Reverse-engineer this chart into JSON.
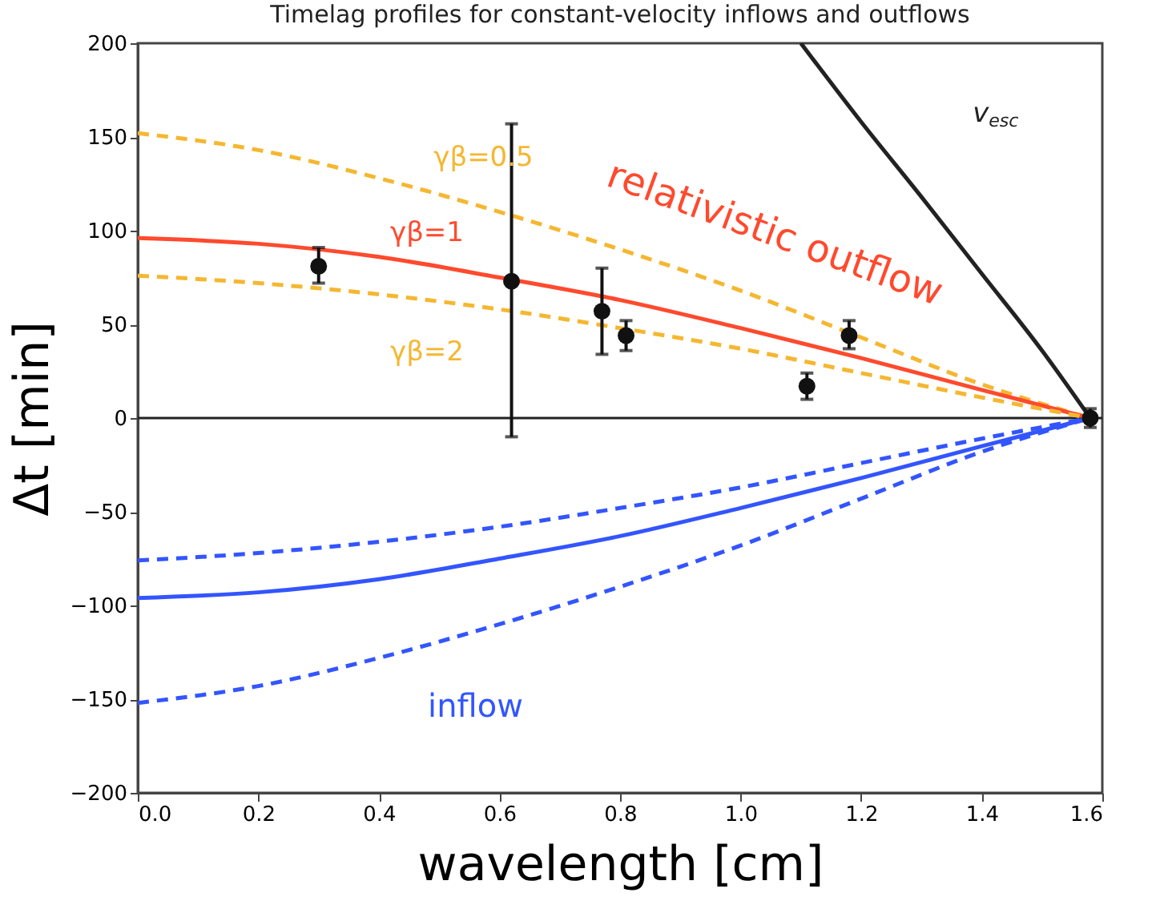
{
  "chart_data": {
    "type": "line",
    "title": "Timelag profiles for constant-velocity inflows and outflows",
    "xlabel": "wavelength [cm]",
    "ylabel": "Δt [min]",
    "xlim": [
      0,
      1.6
    ],
    "ylim": [
      -200,
      200
    ],
    "xticks": [
      {
        "value": 0,
        "label": "0.0"
      },
      0.2,
      0.4,
      0.6,
      0.8,
      {
        "value": 1.0,
        "label": "1.0"
      },
      1.2,
      1.4,
      1.6
    ],
    "yticks": [
      -200,
      -150,
      -100,
      -50,
      0,
      50,
      100,
      150,
      200
    ],
    "grid": false,
    "legend": false,
    "ref_lines": [
      {
        "axis": "y",
        "value": 0,
        "color": "#222222",
        "line_style": "solid"
      }
    ],
    "series": [
      {
        "name": "γβ=0.5",
        "color": "#f5b731",
        "line_style": "dashed",
        "x": [
          0,
          0.2,
          0.4,
          0.6,
          0.8,
          1.0,
          1.2,
          1.4,
          1.58
        ],
        "values": [
          152,
          143,
          128,
          110,
          90,
          68,
          43,
          18,
          0
        ]
      },
      {
        "name": "γβ=1",
        "color": "#ff4a2e",
        "line_style": "solid",
        "x": [
          0,
          0.2,
          0.4,
          0.6,
          0.8,
          1.0,
          1.2,
          1.4,
          1.58
        ],
        "values": [
          96,
          93,
          86,
          75,
          63,
          48,
          32,
          15,
          0
        ]
      },
      {
        "name": "γβ=2",
        "color": "#f5b731",
        "line_style": "dashed",
        "x": [
          0,
          0.2,
          0.4,
          0.6,
          0.8,
          1.0,
          1.2,
          1.4,
          1.58
        ],
        "values": [
          76,
          72,
          66,
          58,
          48,
          37,
          24,
          11,
          0
        ]
      },
      {
        "color": "#3355ff",
        "line_style": "dashed",
        "x": [
          0,
          0.2,
          0.4,
          0.6,
          0.8,
          1.0,
          1.2,
          1.4,
          1.58
        ],
        "values": [
          -76,
          -72,
          -66,
          -58,
          -48,
          -37,
          -24,
          -11,
          0
        ]
      },
      {
        "color": "#3355ff",
        "line_style": "solid",
        "x": [
          0,
          0.2,
          0.4,
          0.6,
          0.8,
          1.0,
          1.2,
          1.4,
          1.58
        ],
        "values": [
          -96,
          -93,
          -86,
          -75,
          -63,
          -48,
          -32,
          -15,
          0
        ]
      },
      {
        "color": "#3355ff",
        "line_style": "dashed",
        "x": [
          0,
          0.2,
          0.4,
          0.6,
          0.8,
          1.0,
          1.2,
          1.4,
          1.58
        ],
        "values": [
          -152,
          -143,
          -128,
          -110,
          -90,
          -68,
          -43,
          -18,
          0
        ]
      },
      {
        "name": "v$_{esc}$",
        "color": "#222222",
        "line_style": "solid",
        "x": [
          1.1,
          1.2,
          1.3,
          1.4,
          1.5,
          1.58
        ],
        "values": [
          200,
          158,
          118,
          77,
          36,
          0
        ]
      },
      {
        "type": "scatter",
        "color": "#111111",
        "marker": "circle",
        "x": [
          0.3,
          0.62,
          0.77,
          0.81,
          1.11,
          1.18,
          1.58
        ],
        "values": [
          81,
          73,
          57,
          44,
          17,
          44,
          0
        ],
        "errors": [
          [
            72,
            91
          ],
          [
            -10,
            157
          ],
          [
            34,
            80
          ],
          [
            36,
            52
          ],
          [
            10,
            24
          ],
          [
            37,
            52
          ],
          [
            -5,
            5
          ]
        ]
      }
    ],
    "annotations": [
      "relativistic outflow",
      "inflow"
    ]
  }
}
